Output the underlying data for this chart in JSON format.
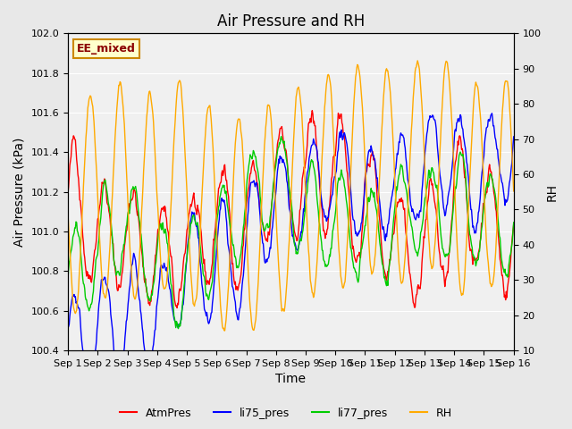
{
  "title": "Air Pressure and RH",
  "xlabel": "Time",
  "ylabel_left": "Air Pressure (kPa)",
  "ylabel_right": "RH",
  "ylim_left": [
    100.4,
    102.0
  ],
  "ylim_right": [
    10,
    100
  ],
  "yticks_left": [
    100.4,
    100.6,
    100.8,
    101.0,
    101.2,
    101.4,
    101.6,
    101.8,
    102.0
  ],
  "yticks_right": [
    10,
    20,
    30,
    40,
    50,
    60,
    70,
    80,
    90,
    100
  ],
  "xtick_labels": [
    "Sep 1",
    "Sep 2",
    "Sep 3",
    "Sep 4",
    "Sep 5",
    "Sep 6",
    "Sep 7",
    "Sep 8",
    "Sep 9",
    "Sep 10",
    "Sep 11",
    "Sep 12",
    "Sep 13",
    "Sep 14",
    "Sep 15",
    "Sep 16"
  ],
  "colors": {
    "AtmPres": "#ff0000",
    "li75_pres": "#0000ff",
    "li77_pres": "#00cc00",
    "RH": "#ffaa00"
  },
  "legend_label": "EE_mixed",
  "legend_box_color": "#ffffcc",
  "legend_box_edge": "#cc8800",
  "bg_color": "#e8e8e8",
  "plot_bg_color": "#f0f0f0",
  "n_points": 720,
  "days": 15,
  "seed": 42,
  "title_fontsize": 12,
  "axis_label_fontsize": 10,
  "tick_fontsize": 8
}
